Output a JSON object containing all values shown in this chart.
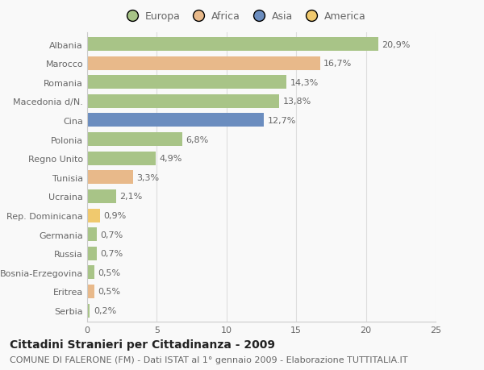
{
  "countries": [
    "Albania",
    "Marocco",
    "Romania",
    "Macedonia d/N.",
    "Cina",
    "Polonia",
    "Regno Unito",
    "Tunisia",
    "Ucraina",
    "Rep. Dominicana",
    "Germania",
    "Russia",
    "Bosnia-Erzegovina",
    "Eritrea",
    "Serbia"
  ],
  "values": [
    20.9,
    16.7,
    14.3,
    13.8,
    12.7,
    6.8,
    4.9,
    3.3,
    2.1,
    0.9,
    0.7,
    0.7,
    0.5,
    0.5,
    0.2
  ],
  "labels": [
    "20,9%",
    "16,7%",
    "14,3%",
    "13,8%",
    "12,7%",
    "6,8%",
    "4,9%",
    "3,3%",
    "2,1%",
    "0,9%",
    "0,7%",
    "0,7%",
    "0,5%",
    "0,5%",
    "0,2%"
  ],
  "colors": [
    "#a8c487",
    "#e8b98a",
    "#a8c487",
    "#a8c487",
    "#6b8dbf",
    "#a8c487",
    "#a8c487",
    "#e8b98a",
    "#a8c487",
    "#f0c96e",
    "#a8c487",
    "#a8c487",
    "#a8c487",
    "#e8b98a",
    "#a8c487"
  ],
  "legend_labels": [
    "Europa",
    "Africa",
    "Asia",
    "America"
  ],
  "legend_colors": [
    "#a8c487",
    "#e8b98a",
    "#6b8dbf",
    "#f0c96e"
  ],
  "title": "Cittadini Stranieri per Cittadinanza - 2009",
  "subtitle": "COMUNE DI FALERONE (FM) - Dati ISTAT al 1° gennaio 2009 - Elaborazione TUTTITALIA.IT",
  "xlim": [
    0,
    25
  ],
  "xticks": [
    0,
    5,
    10,
    15,
    20,
    25
  ],
  "background_color": "#f9f9f9",
  "bar_height": 0.72,
  "title_fontsize": 10,
  "subtitle_fontsize": 8,
  "label_fontsize": 8,
  "tick_fontsize": 8,
  "legend_fontsize": 9,
  "grid_color": "#dddddd",
  "text_color": "#666666"
}
